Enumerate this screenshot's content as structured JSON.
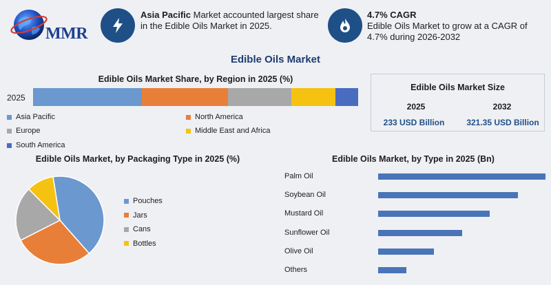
{
  "logo": {
    "text": "MMR"
  },
  "kpi": {
    "region": {
      "icon": "lightning-icon",
      "bold": "Asia Pacific",
      "text": " Market accounted largest share in the Edible Oils Market in 2025."
    },
    "cagr": {
      "icon": "flame-drop-icon",
      "bold": "4.7% CAGR",
      "text": "Edible Oils Market to grow at a CAGR of 4.7% during 2026-2032"
    }
  },
  "title": "Edible Oils Market",
  "colors": {
    "accent": "#1f4f87",
    "blue": "#6a98cf",
    "orange": "#e87f38",
    "gray": "#a8a8a8",
    "yellow": "#f5c211",
    "navy": "#4a6cc0",
    "bar": "#4a74b8"
  },
  "market_size": {
    "title": "Edible Oils Market Size",
    "years": [
      "2025",
      "2032"
    ],
    "values": [
      "233 USD Billion",
      "321.35 USD Billion"
    ]
  },
  "chart_data": [
    {
      "type": "bar",
      "orientation": "horizontal-stacked",
      "title": "Edible Oils Market Share, by Region in 2025 (%)",
      "categories": [
        "2025"
      ],
      "series": [
        {
          "name": "Asia Pacific",
          "values": [
            33.5
          ],
          "color": "#6a98cf"
        },
        {
          "name": "North America",
          "values": [
            26.5
          ],
          "color": "#e87f38"
        },
        {
          "name": "Europe",
          "values": [
            19.5
          ],
          "color": "#a8a8a8"
        },
        {
          "name": "Middle East and Africa",
          "values": [
            13.5
          ],
          "color": "#f5c211"
        },
        {
          "name": "South America",
          "values": [
            7
          ],
          "color": "#4a6cc0"
        }
      ],
      "legend": "bottom"
    },
    {
      "type": "pie",
      "title": "Edible Oils Market, by Packaging Type in 2025 (%)",
      "labels": [
        "Pouches",
        "Jars",
        "Cans",
        "Bottles"
      ],
      "values": [
        41,
        29,
        20,
        10
      ],
      "colors": [
        "#6a98cf",
        "#e87f38",
        "#a8a8a8",
        "#f5c211"
      ],
      "legend": "right"
    },
    {
      "type": "bar",
      "orientation": "horizontal",
      "title": "Edible Oils Market, by Type in 2025 (Bn)",
      "categories": [
        "Palm Oil",
        "Soybean Oil",
        "Mustard Oil",
        "Sunflower Oil",
        "Olive Oil",
        "Others"
      ],
      "values": [
        60,
        50,
        40,
        30,
        20,
        10
      ],
      "xlim": [
        0,
        60
      ]
    }
  ]
}
